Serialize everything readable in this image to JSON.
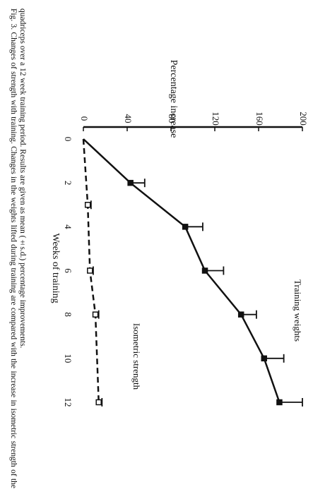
{
  "chart_data": {
    "type": "line",
    "caption": "Fig. 3. Changes of strength with training. Changes in the weights lifted during training are compared with the increase in isometric strength of the quadriceps over a 12 week training period. Results are given as mean (±s.d.) percentage improvements.",
    "xlabel": "Weeks of training",
    "ylabel": "Percentage increase",
    "xlim": [
      0,
      12
    ],
    "xticks": [
      0,
      2,
      4,
      6,
      8,
      10,
      12
    ],
    "ylim": [
      0,
      200
    ],
    "yticks": [
      0,
      40,
      80,
      120,
      160,
      200
    ],
    "series": [
      {
        "name": "Training weights",
        "color": "#111111",
        "dash": false,
        "marker": "filled",
        "x": [
          0,
          2,
          4,
          6,
          8,
          10,
          12
        ],
        "values": [
          0,
          43,
          93,
          111,
          144,
          165,
          179
        ],
        "errors": [
          null,
          13,
          16,
          17,
          14,
          18,
          21
        ]
      },
      {
        "name": "Isometric strength",
        "color": "#111111",
        "dash": true,
        "marker": "open",
        "x": [
          0,
          3,
          6,
          8,
          12
        ],
        "values": [
          0,
          4,
          6,
          11,
          14
        ],
        "errors": [
          null,
          3,
          3,
          3,
          3
        ]
      }
    ]
  }
}
